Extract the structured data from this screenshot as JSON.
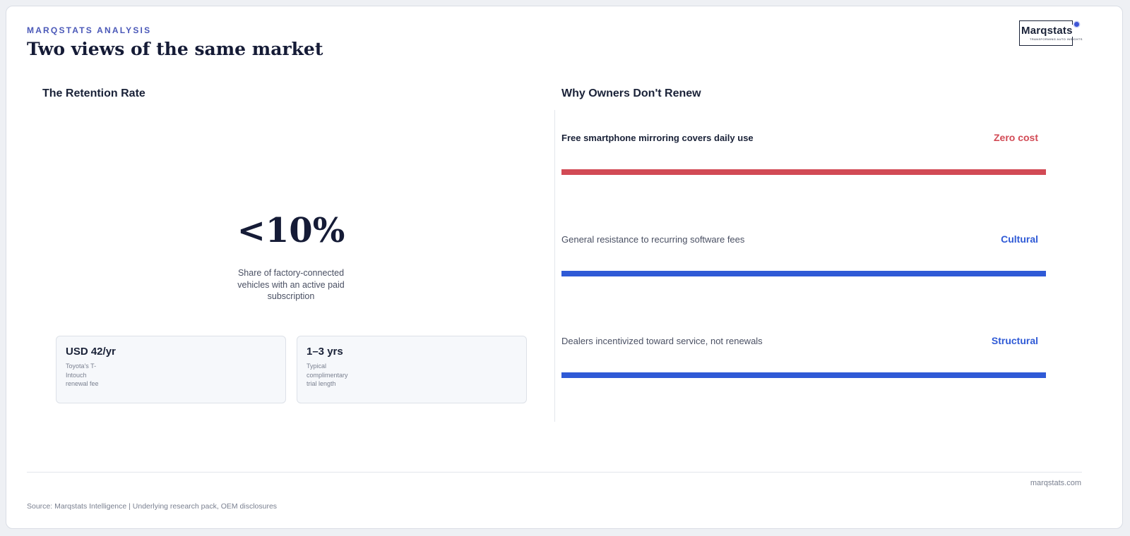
{
  "header": {
    "eyebrow": "MARQSTATS ANALYSIS",
    "title": "Two views of the same market",
    "logo": {
      "word": "Marqstats",
      "tagline": "TRANSFORMING AUTO INSIGHTS"
    }
  },
  "left": {
    "title": "The Retention Rate",
    "big_value": "<10%",
    "big_desc": "Share of factory-connected vehicles with an active paid subscription",
    "cards": [
      {
        "value": "USD 42/yr",
        "label": "Toyota's T-Intouch renewal fee"
      },
      {
        "value": "1–3 yrs",
        "label": "Typical complimentary trial length"
      }
    ]
  },
  "right": {
    "title": "Why Owners Don't Renew",
    "reasons": [
      {
        "text": "Free smartphone mirroring covers daily use",
        "tag": "Zero cost",
        "color": "#d24a55"
      },
      {
        "text": "General resistance to recurring software fees",
        "tag": "Cultural",
        "color": "#2f5ad6"
      },
      {
        "text": "Dealers incentivized toward service, not renewals",
        "tag": "Structural",
        "color": "#2f5ad6"
      }
    ]
  },
  "footer": {
    "site": "marqstats.com",
    "source": "Source: Marqstats Intelligence | Underlying research pack, OEM disclosures"
  }
}
